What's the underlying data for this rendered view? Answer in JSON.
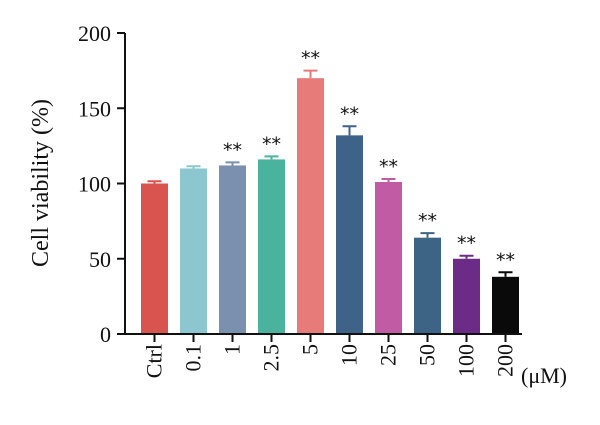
{
  "chart_data": {
    "type": "bar",
    "ylabel": "Cell viability (%)",
    "unit_label": "(μM)",
    "ylim": [
      0,
      200
    ],
    "yticks": [
      0,
      50,
      100,
      150,
      200
    ],
    "categories": [
      "Ctrl",
      "0.1",
      "1",
      "2.5",
      "5",
      "10",
      "25",
      "50",
      "100",
      "200"
    ],
    "values": [
      100,
      110,
      112,
      116,
      170,
      132,
      101,
      64,
      50,
      38
    ],
    "errors": [
      1.5,
      1.5,
      2,
      2,
      5,
      6,
      2,
      3,
      2,
      3
    ],
    "significance": [
      "",
      "",
      "**",
      "**",
      "**",
      "**",
      "**",
      "**",
      "**",
      "**"
    ],
    "colors": [
      "#d9534f",
      "#8cc7cf",
      "#7b8fae",
      "#4bb39d",
      "#e77b7a",
      "#3f6388",
      "#c15ca4",
      "#3e6485",
      "#6b2b86",
      "#0a0a0a"
    ]
  }
}
